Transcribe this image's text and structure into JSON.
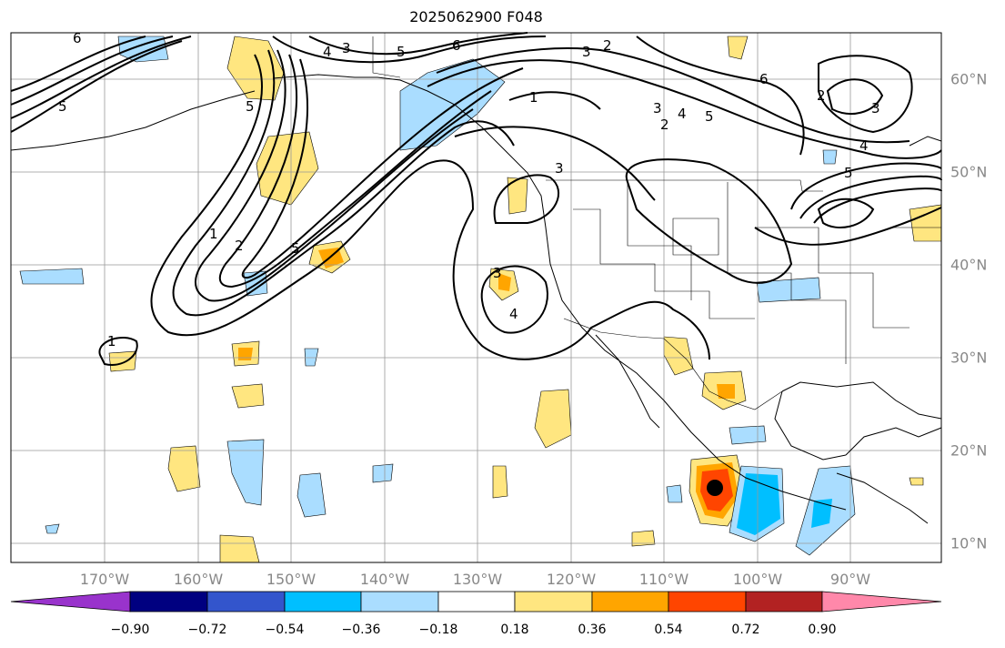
{
  "title": "2025062900 F048",
  "map": {
    "lon_labels": [
      "170°W",
      "160°W",
      "150°W",
      "140°W",
      "130°W",
      "120°W",
      "110°W",
      "100°W",
      "90°W"
    ],
    "lat_labels": [
      "60°N",
      "50°N",
      "40°N",
      "30°N",
      "20°N",
      "10°N"
    ],
    "contour_labels": [
      "1",
      "2",
      "3",
      "4",
      "5",
      "6"
    ],
    "storm_marker": "black-dot"
  },
  "colorbar": {
    "ticks": [
      "−0.90",
      "−0.72",
      "−0.54",
      "−0.36",
      "−0.18",
      "0.18",
      "0.36",
      "0.54",
      "0.72",
      "0.90"
    ],
    "colors": [
      "#9933cc",
      "#000080",
      "#3355cc",
      "#00bfff",
      "#aaddff",
      "#ffffff",
      "#ffe680",
      "#ffa500",
      "#ff4500",
      "#b22222",
      "#ff88aa"
    ]
  }
}
